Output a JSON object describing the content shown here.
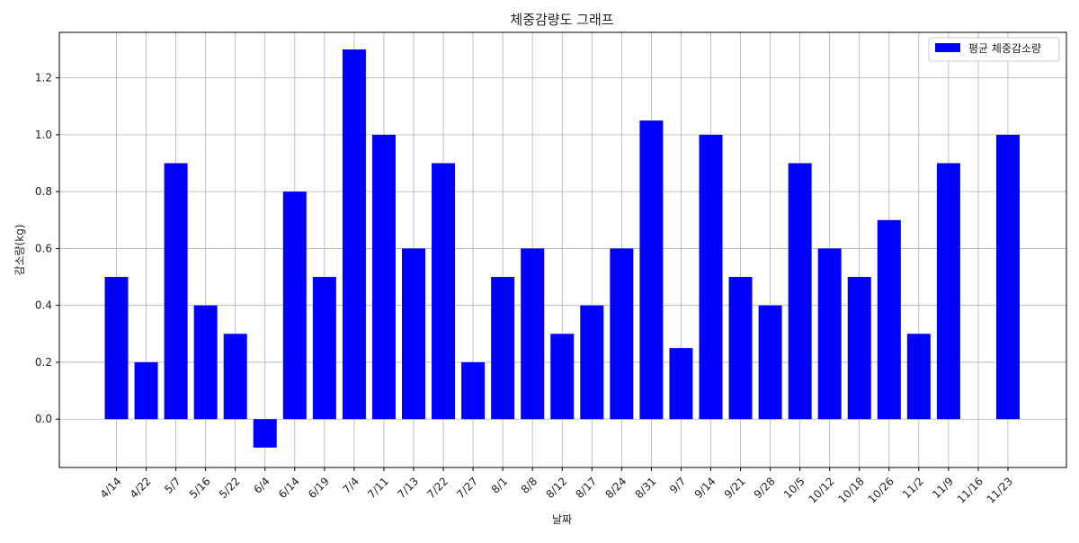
{
  "chart_data": {
    "type": "bar",
    "title": "체중감량도 그래프",
    "xlabel": "날짜",
    "ylabel": "감소량(kg)",
    "categories": [
      "4/14",
      "4/22",
      "5/7",
      "5/16",
      "5/22",
      "6/4",
      "6/14",
      "6/19",
      "7/4",
      "7/11",
      "7/13",
      "7/22",
      "7/27",
      "8/1",
      "8/8",
      "8/12",
      "8/17",
      "8/24",
      "8/31",
      "9/7",
      "9/14",
      "9/21",
      "9/28",
      "10/5",
      "10/12",
      "10/18",
      "10/26",
      "11/2",
      "11/9",
      "11/16",
      "11/23"
    ],
    "series": [
      {
        "name": "평균 체중감소량",
        "color": "#0000ff",
        "values": [
          0.5,
          0.2,
          0.9,
          0.4,
          0.3,
          -0.1,
          0.8,
          0.5,
          1.3,
          1.0,
          0.6,
          0.9,
          0.2,
          0.5,
          0.6,
          0.3,
          0.4,
          0.6,
          1.05,
          0.25,
          1.0,
          0.5,
          0.4,
          0.9,
          0.6,
          0.5,
          0.7,
          0.3,
          0.9,
          0.0,
          1.0
        ]
      }
    ],
    "ylim": [
      -0.17,
      1.36
    ],
    "yticks": [
      "0.0",
      "0.2",
      "0.4",
      "0.6",
      "0.8",
      "1.0",
      "1.2"
    ],
    "ytick_values": [
      0.0,
      0.2,
      0.4,
      0.6,
      0.8,
      1.0,
      1.2
    ],
    "grid": true,
    "legend_position": "top-right"
  }
}
